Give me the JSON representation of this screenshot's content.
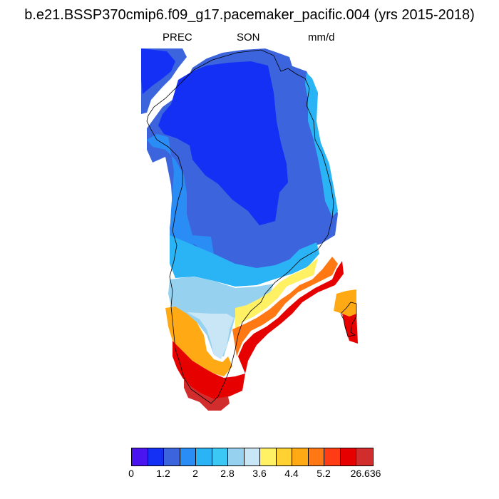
{
  "title": "b.e21.BSSP370cmip6.f09_g17.pacemaker_pacific.004 (yrs 2015-2018)",
  "subtitle_left": "PREC",
  "subtitle_center": "SON",
  "subtitle_right": "mm/d",
  "colorbar": {
    "colors": [
      "#4a14f0",
      "#1430f5",
      "#3c64dc",
      "#2a8cf5",
      "#2ab4f5",
      "#3cc8f5",
      "#96d2f0",
      "#c8e6f5",
      "#fff064",
      "#ffd232",
      "#ffaa14",
      "#ff7814",
      "#ff3c14",
      "#e60000",
      "#d22d2d"
    ],
    "labels": [
      "0",
      "1.2",
      "2",
      "2.8",
      "3.6",
      "4.4",
      "5.2",
      "26.636"
    ]
  },
  "map_regions": [
    {
      "name": "northwest-coast",
      "level": 2
    },
    {
      "name": "northwest-inner",
      "level": 1
    },
    {
      "name": "central-north",
      "level": 1
    },
    {
      "name": "central-south-core",
      "level": 1
    },
    {
      "name": "east-coast-band",
      "level": 2
    },
    {
      "name": "east-coast-outer",
      "level": 4
    },
    {
      "name": "west-coast-band",
      "level": 3
    },
    {
      "name": "mid-latitude-band",
      "level": 4
    },
    {
      "name": "south-central",
      "level": 6
    },
    {
      "name": "south-inner",
      "level": 7
    },
    {
      "name": "southeast-yellow",
      "level": 8
    },
    {
      "name": "southeast-orange",
      "level": 11
    },
    {
      "name": "southeast-red",
      "level": 13
    },
    {
      "name": "south-tip-red",
      "level": 13
    },
    {
      "name": "south-tip-dark",
      "level": 14
    },
    {
      "name": "southwest-orange",
      "level": 10
    },
    {
      "name": "iceland-west",
      "level": 10
    },
    {
      "name": "iceland-east",
      "level": 13
    }
  ]
}
